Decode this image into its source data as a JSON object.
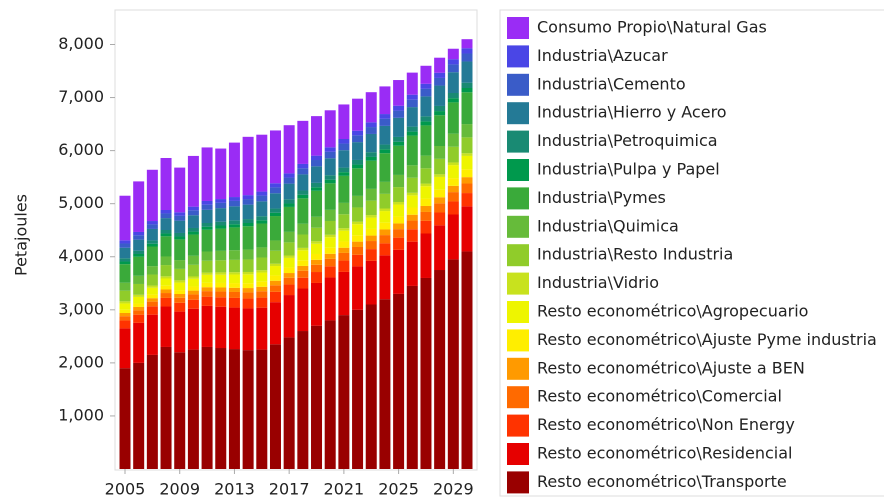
{
  "chart_data": {
    "type": "stacked_bar",
    "y_label": "Petajoules",
    "categories": [
      "2005",
      null,
      null,
      null,
      "2009",
      null,
      null,
      null,
      "2013",
      null,
      null,
      null,
      "2017",
      null,
      null,
      null,
      "2021",
      null,
      null,
      null,
      "2025",
      null,
      null,
      null,
      "2029",
      null
    ],
    "ylim": [
      0,
      8650
    ],
    "yticks": [
      {
        "value": 1000,
        "label": "1,000"
      },
      {
        "value": 2000,
        "label": "2,000"
      },
      {
        "value": 3000,
        "label": "3,000"
      },
      {
        "value": 4000,
        "label": "4,000"
      },
      {
        "value": 5000,
        "label": "5,000"
      },
      {
        "value": 6000,
        "label": "6,000"
      },
      {
        "value": 7000,
        "label": "7,000"
      },
      {
        "value": 8000,
        "label": "8,000"
      }
    ],
    "grid": false,
    "legend": "right",
    "series": [
      {
        "name": "Resto econométrico\\Transporte",
        "color": "#990000",
        "values": [
          1900,
          2000,
          2150,
          2300,
          2200,
          2250,
          2300,
          2280,
          2260,
          2240,
          2250,
          2350,
          2480,
          2600,
          2700,
          2800,
          2900,
          3000,
          3100,
          3200,
          3300,
          3450,
          3600,
          3750,
          3950,
          4100
        ]
      },
      {
        "name": "Resto econométrico\\Residencial",
        "color": "#e60000",
        "values": [
          750,
          754,
          758,
          762,
          766,
          770,
          774,
          778,
          782,
          786,
          790,
          794,
          798,
          802,
          806,
          810,
          814,
          818,
          822,
          826,
          830,
          834,
          838,
          842,
          846,
          850
        ]
      },
      {
        "name": "Resto econométrico\\Non Energy",
        "color": "#ff3300",
        "values": [
          150,
          154,
          158,
          162,
          166,
          170,
          174,
          178,
          182,
          186,
          190,
          194,
          198,
          202,
          206,
          210,
          214,
          218,
          222,
          226,
          230,
          234,
          238,
          242,
          246,
          250
        ]
      },
      {
        "name": "Resto econométrico\\Comercial",
        "color": "#ff6a00",
        "values": [
          80,
          84,
          88,
          92,
          96,
          100,
          104,
          108,
          112,
          116,
          120,
          124,
          128,
          132,
          136,
          140,
          144,
          148,
          152,
          156,
          160,
          164,
          168,
          172,
          176,
          180
        ]
      },
      {
        "name": "Resto econométrico\\Ajuste a BEN",
        "color": "#ff9a00",
        "values": [
          60,
          62,
          65,
          67,
          70,
          72,
          74,
          77,
          79,
          82,
          84,
          86,
          89,
          91,
          94,
          96,
          98,
          101,
          103,
          106,
          108,
          110,
          113,
          115,
          118,
          120
        ]
      },
      {
        "name": "Resto econométrico\\Ajuste Pyme industria",
        "color": "#ffee00",
        "values": [
          60,
          64,
          67,
          71,
          74,
          78,
          82,
          85,
          89,
          92,
          96,
          100,
          103,
          107,
          110,
          114,
          118,
          121,
          125,
          128,
          132,
          136,
          139,
          143,
          146,
          150
        ]
      },
      {
        "name": "Resto econométrico\\Agropecuario",
        "color": "#eef500",
        "values": [
          120,
          125,
          130,
          136,
          141,
          146,
          151,
          156,
          162,
          167,
          172,
          177,
          182,
          188,
          193,
          198,
          203,
          208,
          214,
          219,
          224,
          229,
          234,
          240,
          245,
          250
        ]
      },
      {
        "name": "Industria\\Vidrio",
        "color": "#c8e21e",
        "values": [
          40,
          40,
          41,
          41,
          42,
          42,
          42,
          43,
          43,
          44,
          44,
          44,
          45,
          45,
          46,
          46,
          46,
          47,
          47,
          48,
          48,
          48,
          49,
          49,
          50,
          50
        ]
      },
      {
        "name": "Industria\\Resto Industria",
        "color": "#90cc2a",
        "values": [
          200,
          204,
          208,
          212,
          216,
          220,
          224,
          228,
          232,
          236,
          240,
          244,
          248,
          252,
          256,
          260,
          264,
          268,
          272,
          276,
          280,
          284,
          288,
          292,
          296,
          300
        ]
      },
      {
        "name": "Industria\\Quimica",
        "color": "#66bb3a",
        "values": [
          150,
          154,
          158,
          162,
          166,
          170,
          174,
          178,
          182,
          186,
          190,
          194,
          198,
          202,
          206,
          210,
          214,
          218,
          222,
          226,
          230,
          234,
          238,
          242,
          246,
          250
        ]
      },
      {
        "name": "Industria\\Pymes",
        "color": "#3aaa3a",
        "values": [
          350,
          360,
          370,
          380,
          390,
          400,
          410,
          420,
          430,
          440,
          450,
          460,
          470,
          480,
          490,
          500,
          510,
          520,
          530,
          540,
          550,
          560,
          570,
          580,
          590,
          600
        ]
      },
      {
        "name": "Industria\\Pulpa y Papel",
        "color": "#00994d",
        "values": [
          50,
          51,
          52,
          54,
          55,
          56,
          57,
          58,
          60,
          61,
          62,
          63,
          64,
          66,
          67,
          68,
          69,
          70,
          72,
          73,
          74,
          75,
          76,
          78,
          79,
          80
        ]
      },
      {
        "name": "Industria\\Petroquimica",
        "color": "#198a73",
        "values": [
          60,
          62,
          63,
          65,
          66,
          68,
          70,
          71,
          73,
          74,
          76,
          78,
          79,
          81,
          82,
          84,
          86,
          87,
          89,
          90,
          92,
          94,
          95,
          97,
          98,
          100
        ]
      },
      {
        "name": "Industria\\Hierro y Acero",
        "color": "#247a96",
        "values": [
          200,
          208,
          216,
          224,
          232,
          240,
          248,
          256,
          264,
          272,
          280,
          288,
          296,
          304,
          312,
          320,
          328,
          336,
          344,
          352,
          360,
          368,
          376,
          384,
          392,
          400
        ]
      },
      {
        "name": "Industria\\Cemento",
        "color": "#3a5cc8",
        "values": [
          80,
          83,
          86,
          88,
          91,
          94,
          97,
          100,
          102,
          105,
          108,
          111,
          114,
          116,
          119,
          122,
          125,
          128,
          130,
          133,
          136,
          139,
          142,
          144,
          147,
          150
        ]
      },
      {
        "name": "Industria\\Azucar",
        "color": "#4a46e6",
        "values": [
          60,
          62,
          63,
          65,
          66,
          68,
          70,
          71,
          73,
          74,
          76,
          78,
          79,
          81,
          82,
          84,
          86,
          87,
          89,
          90,
          92,
          94,
          95,
          97,
          98,
          100
        ]
      },
      {
        "name": "Consumo Propio\\Natural Gas",
        "color": "#9a2cf5",
        "values": [
          840,
          953,
          966,
          980,
          843,
          956,
          1009,
          952,
          1026,
          1099,
          1072,
          995,
          908,
          812,
          745,
          698,
          651,
          604,
          568,
          521,
          484,
          417,
          340,
          284,
          197,
          170
        ]
      }
    ]
  }
}
